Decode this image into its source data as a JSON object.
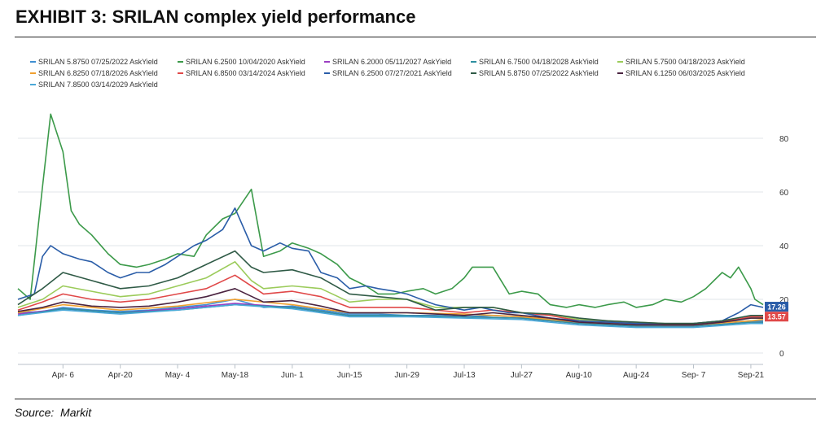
{
  "page": {
    "title": "EXHIBIT 3: SRILAN complex yield performance",
    "source": "Source:  Markit"
  },
  "chart_data": {
    "type": "line",
    "title": "",
    "xlabel": "",
    "ylabel": "",
    "x_tick_labels": [
      "Apr- 6",
      "Apr-20",
      "May- 4",
      "May-18",
      "Jun- 1",
      "Jun-15",
      "Jun-29",
      "Jul-13",
      "Jul-27",
      "Aug-10",
      "Aug-24",
      "Sep- 7",
      "Sep-21"
    ],
    "y_tick_labels": [
      "0",
      "20",
      "40",
      "60",
      "80"
    ],
    "ylim": [
      0,
      90
    ],
    "grid": "horizontal",
    "legend_position": "top",
    "end_labels": [
      {
        "text": "17.26",
        "value": 17.26,
        "color": "#2a5da8"
      },
      {
        "text": "13.57",
        "value": 13.57,
        "color": "#e04848"
      }
    ],
    "series": [
      {
        "name": "SRILAN 5.8750 07/25/2022 AskYield",
        "color": "#3f8fd2",
        "x": [
          "Mar-26",
          "Apr-1",
          "Apr-6",
          "Apr-13",
          "Apr-20",
          "Apr-27",
          "May-4",
          "May-11",
          "May-18",
          "May-25",
          "Jun-1",
          "Jun-8",
          "Jun-15",
          "Jun-22",
          "Jun-29",
          "Jul-6",
          "Jul-13",
          "Jul-20",
          "Jul-27",
          "Aug-3",
          "Aug-10",
          "Aug-17",
          "Aug-24",
          "Aug-31",
          "Sep-7",
          "Sep-14",
          "Sep-21",
          "Sep-24"
        ],
        "values": [
          15,
          15.5,
          17,
          16,
          15.5,
          16,
          17,
          18,
          20,
          17,
          17.5,
          16,
          14.5,
          14.5,
          14,
          14,
          13.5,
          14,
          13.5,
          12.5,
          11.5,
          11,
          10.5,
          10.5,
          11,
          11.5,
          12,
          12
        ]
      },
      {
        "name": "SRILAN 6.2500 10/04/2020 AskYield",
        "color": "#3c9a4a",
        "x": [
          "Mar-26",
          "Mar-29",
          "Apr-1",
          "Apr-3",
          "Apr-6",
          "Apr-8",
          "Apr-10",
          "Apr-13",
          "Apr-17",
          "Apr-20",
          "Apr-24",
          "Apr-27",
          "May-1",
          "May-4",
          "May-8",
          "May-11",
          "May-15",
          "May-18",
          "May-22",
          "May-25",
          "May-29",
          "Jun-1",
          "Jun-5",
          "Jun-8",
          "Jun-12",
          "Jun-15",
          "Jun-19",
          "Jun-22",
          "Jun-26",
          "Jun-29",
          "Jul-3",
          "Jul-6",
          "Jul-10",
          "Jul-13",
          "Jul-15",
          "Jul-17",
          "Jul-20",
          "Jul-24",
          "Jul-27",
          "Jul-31",
          "Aug-3",
          "Aug-7",
          "Aug-10",
          "Aug-14",
          "Aug-17",
          "Aug-21",
          "Aug-24",
          "Aug-28",
          "Aug-31",
          "Sep-4",
          "Sep-7",
          "Sep-10",
          "Sep-14",
          "Sep-16",
          "Sep-18",
          "Sep-21",
          "Sep-22",
          "Sep-24"
        ],
        "values": [
          24,
          20,
          62,
          89,
          75,
          53,
          48,
          44,
          37,
          33,
          32,
          33,
          35,
          37,
          36,
          44,
          50,
          52,
          61,
          36,
          38,
          41,
          39,
          37,
          33,
          28,
          25,
          22,
          22,
          23,
          24,
          22,
          24,
          28,
          32,
          32,
          32,
          22,
          23,
          22,
          18,
          17,
          18,
          17,
          18,
          19,
          17,
          18,
          20,
          19,
          21,
          24,
          30,
          28,
          32,
          24,
          20,
          18
        ]
      },
      {
        "name": "SRILAN 6.2000 05/11/2027 AskYield",
        "color": "#9b3ec2",
        "x": [
          "Mar-26",
          "Apr-6",
          "Apr-20",
          "May-4",
          "May-18",
          "Jun-1",
          "Jun-15",
          "Jun-29",
          "Jul-13",
          "Jul-27",
          "Aug-10",
          "Aug-24",
          "Sep-7",
          "Sep-21",
          "Sep-24"
        ],
        "values": [
          14.5,
          16.5,
          15,
          16.5,
          18.5,
          17,
          14,
          14,
          13.5,
          13,
          11,
          10,
          10,
          11.5,
          11.5
        ]
      },
      {
        "name": "SRILAN 6.7500 04/18/2028 AskYield",
        "color": "#2e8fa0",
        "x": [
          "Mar-26",
          "Apr-6",
          "Apr-20",
          "May-4",
          "May-18",
          "Jun-1",
          "Jun-15",
          "Jun-29",
          "Jul-13",
          "Jul-27",
          "Aug-10",
          "Aug-24",
          "Sep-7",
          "Sep-21",
          "Sep-24"
        ],
        "values": [
          14,
          16.5,
          15,
          16,
          18,
          17,
          14,
          14,
          13.5,
          13,
          11,
          10,
          10,
          11.5,
          11.5
        ]
      },
      {
        "name": "SRILAN 5.7500 04/18/2023 AskYield",
        "color": "#9bcb5a",
        "x": [
          "Mar-26",
          "Apr-1",
          "Apr-6",
          "Apr-13",
          "Apr-20",
          "Apr-27",
          "May-4",
          "May-11",
          "May-18",
          "May-22",
          "May-25",
          "Jun-1",
          "Jun-8",
          "Jun-15",
          "Jun-22",
          "Jun-29",
          "Jul-6",
          "Jul-13",
          "Jul-20",
          "Jul-27",
          "Aug-3",
          "Aug-10",
          "Aug-17",
          "Aug-24",
          "Aug-31",
          "Sep-7",
          "Sep-14",
          "Sep-21",
          "Sep-24"
        ],
        "values": [
          17,
          20,
          25,
          23,
          21,
          22,
          25,
          28,
          34,
          27,
          24,
          25,
          24,
          19,
          20,
          20,
          17,
          17,
          17,
          15,
          14.5,
          12.5,
          12,
          11.5,
          11,
          11,
          12,
          13,
          13
        ]
      },
      {
        "name": "SRILAN 6.8250 07/18/2026 AskYield",
        "color": "#f0a030",
        "x": [
          "Mar-26",
          "Apr-6",
          "Apr-20",
          "May-4",
          "May-18",
          "Jun-1",
          "Jun-15",
          "Jun-29",
          "Jul-13",
          "Jul-27",
          "Aug-10",
          "Aug-24",
          "Sep-7",
          "Sep-21",
          "Sep-24"
        ],
        "values": [
          15,
          18,
          16,
          17.5,
          20,
          18,
          15,
          15,
          14.5,
          13.5,
          11.5,
          10.5,
          10.5,
          12,
          12.5
        ]
      },
      {
        "name": "SRILAN 6.8500 03/14/2024 AskYield",
        "color": "#e04848",
        "x": [
          "Mar-26",
          "Apr-1",
          "Apr-6",
          "Apr-13",
          "Apr-20",
          "Apr-27",
          "May-4",
          "May-11",
          "May-18",
          "May-25",
          "Jun-1",
          "Jun-8",
          "Jun-15",
          "Jun-22",
          "Jun-29",
          "Jul-6",
          "Jul-13",
          "Jul-20",
          "Jul-27",
          "Aug-3",
          "Aug-10",
          "Aug-17",
          "Aug-24",
          "Aug-31",
          "Sep-7",
          "Sep-14",
          "Sep-21",
          "Sep-24"
        ],
        "values": [
          16,
          19,
          22,
          20,
          19,
          20,
          22,
          24,
          29,
          22,
          23,
          21,
          17,
          17,
          17,
          16,
          15,
          16,
          15,
          14,
          12,
          11.5,
          11,
          10.5,
          10.5,
          11.5,
          13.5,
          13.5
        ]
      },
      {
        "name": "SRILAN 6.2500 07/27/2021 AskYield",
        "color": "#2a5da8",
        "x": [
          "Mar-26",
          "Mar-30",
          "Apr-1",
          "Apr-3",
          "Apr-6",
          "Apr-10",
          "Apr-13",
          "Apr-17",
          "Apr-20",
          "Apr-24",
          "Apr-27",
          "May-1",
          "May-4",
          "May-8",
          "May-11",
          "May-15",
          "May-18",
          "May-22",
          "May-25",
          "May-29",
          "Jun-1",
          "Jun-5",
          "Jun-8",
          "Jun-12",
          "Jun-15",
          "Jun-19",
          "Jun-22",
          "Jun-26",
          "Jun-29",
          "Jul-6",
          "Jul-13",
          "Jul-17",
          "Jul-20",
          "Jul-24",
          "Jul-27",
          "Aug-3",
          "Aug-10",
          "Aug-17",
          "Aug-24",
          "Aug-31",
          "Sep-7",
          "Sep-14",
          "Sep-18",
          "Sep-21",
          "Sep-24"
        ],
        "values": [
          20,
          22,
          36,
          40,
          37,
          35,
          34,
          30,
          28,
          30,
          30,
          33,
          36,
          40,
          42,
          46,
          54,
          40,
          38,
          41,
          39,
          38,
          30,
          28,
          24,
          25,
          24,
          23,
          22,
          18,
          16,
          17,
          16,
          15,
          15,
          13,
          12,
          11.5,
          11,
          11,
          11,
          12,
          15,
          18,
          17
        ]
      },
      {
        "name": "SRILAN 5.8750 07/25/2022 AskYield",
        "color": "#2f5a46",
        "x": [
          "Mar-26",
          "Apr-1",
          "Apr-6",
          "Apr-13",
          "Apr-20",
          "Apr-27",
          "May-4",
          "May-11",
          "May-18",
          "May-22",
          "May-25",
          "Jun-1",
          "Jun-8",
          "Jun-15",
          "Jun-22",
          "Jun-29",
          "Jul-6",
          "Jul-13",
          "Jul-20",
          "Jul-27",
          "Aug-3",
          "Aug-10",
          "Aug-17",
          "Aug-24",
          "Aug-31",
          "Sep-7",
          "Sep-14",
          "Sep-21",
          "Sep-24"
        ],
        "values": [
          18,
          24,
          30,
          27,
          24,
          25,
          28,
          33,
          38,
          32,
          30,
          31,
          28,
          22,
          21,
          20,
          16,
          17,
          17,
          15,
          14.5,
          13,
          12,
          11.5,
          11,
          11,
          12,
          14,
          14
        ]
      },
      {
        "name": "SRILAN 6.1250 06/03/2025 AskYield",
        "color": "#4a2340",
        "x": [
          "Mar-26",
          "Apr-1",
          "Apr-6",
          "Apr-13",
          "Apr-20",
          "Apr-27",
          "May-4",
          "May-11",
          "May-18",
          "May-25",
          "Jun-1",
          "Jun-8",
          "Jun-15",
          "Jun-22",
          "Jun-29",
          "Jul-6",
          "Jul-13",
          "Jul-20",
          "Jul-27",
          "Aug-3",
          "Aug-10",
          "Aug-17",
          "Aug-24",
          "Aug-31",
          "Sep-7",
          "Sep-14",
          "Sep-21",
          "Sep-24"
        ],
        "values": [
          15.5,
          17,
          19,
          17.5,
          17,
          17.5,
          19,
          21,
          24,
          19,
          19.5,
          17.5,
          15,
          15,
          15,
          14.5,
          14,
          15,
          14,
          13,
          11.5,
          11,
          10.5,
          10.5,
          10.5,
          11.5,
          13,
          13
        ]
      },
      {
        "name": "SRILAN 7.8500 03/14/2029 AskYield",
        "color": "#4aa8d8",
        "x": [
          "Mar-26",
          "Apr-6",
          "Apr-20",
          "May-4",
          "May-18",
          "Jun-1",
          "Jun-15",
          "Jun-29",
          "Jul-13",
          "Jul-27",
          "Aug-10",
          "Aug-24",
          "Sep-7",
          "Sep-21",
          "Sep-24"
        ],
        "values": [
          14,
          16,
          14.5,
          16,
          18,
          16.5,
          13.5,
          13.5,
          13,
          12.5,
          10.5,
          9.5,
          9.5,
          11,
          11
        ]
      }
    ]
  }
}
